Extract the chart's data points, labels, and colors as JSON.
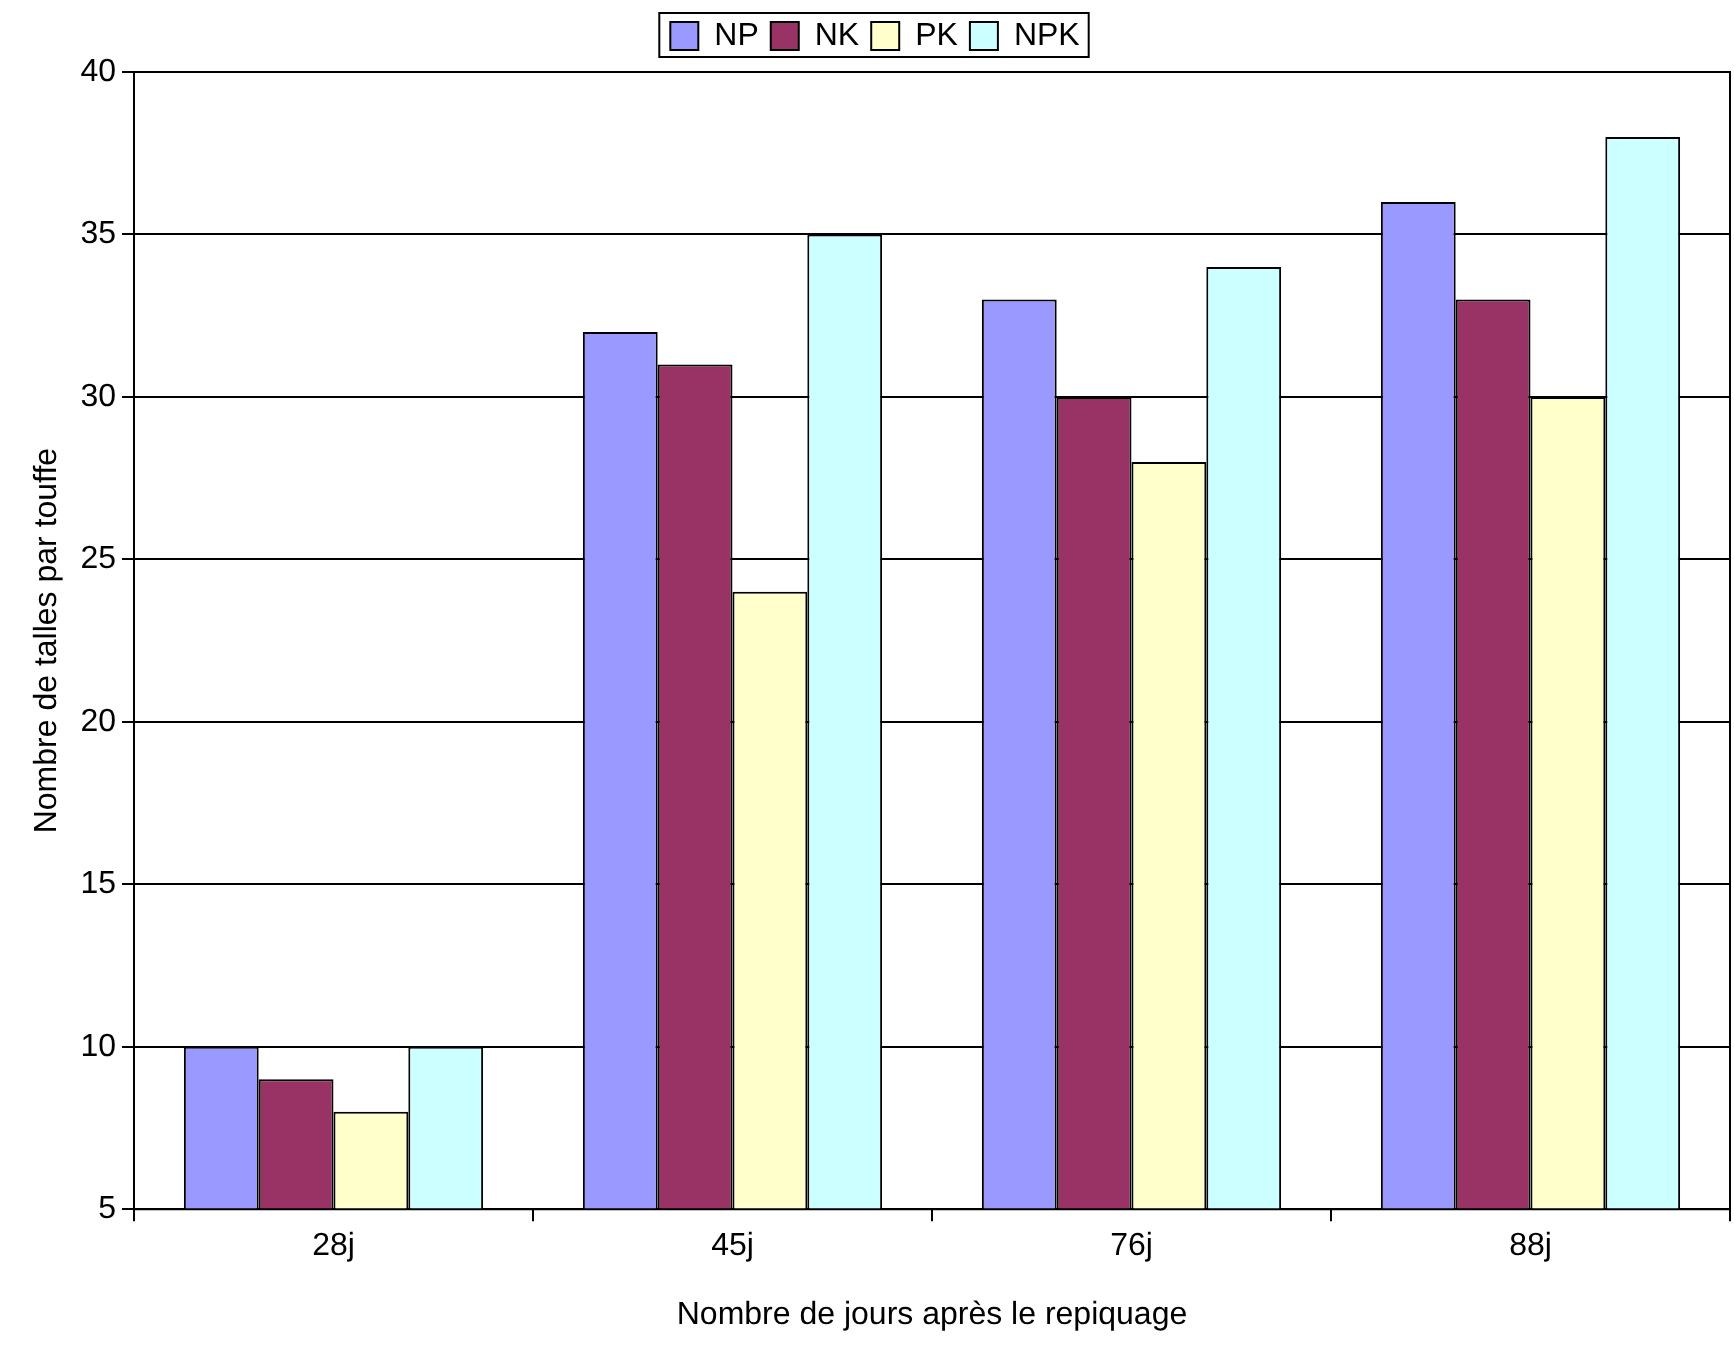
{
  "chart_data": {
    "type": "bar",
    "xlabel": "Nombre de jours après le repiquage",
    "ylabel": "Nombre de talles par touffe",
    "categories": [
      "28j",
      "45j",
      "76j",
      "88j"
    ],
    "series": [
      {
        "name": "NP",
        "color": "#9999ff",
        "values": [
          10,
          32,
          33,
          36
        ]
      },
      {
        "name": "NK",
        "color": "#993366",
        "values": [
          9,
          31,
          30,
          33
        ]
      },
      {
        "name": "PK",
        "color": "#ffffcc",
        "values": [
          8,
          24,
          28,
          30
        ]
      },
      {
        "name": "NPK",
        "color": "#ccffff",
        "values": [
          10,
          35,
          34,
          38
        ]
      }
    ],
    "ylim": [
      5,
      40
    ],
    "yticks": [
      5,
      10,
      15,
      20,
      25,
      30,
      35,
      40
    ],
    "grid": "y",
    "legend": "top"
  }
}
